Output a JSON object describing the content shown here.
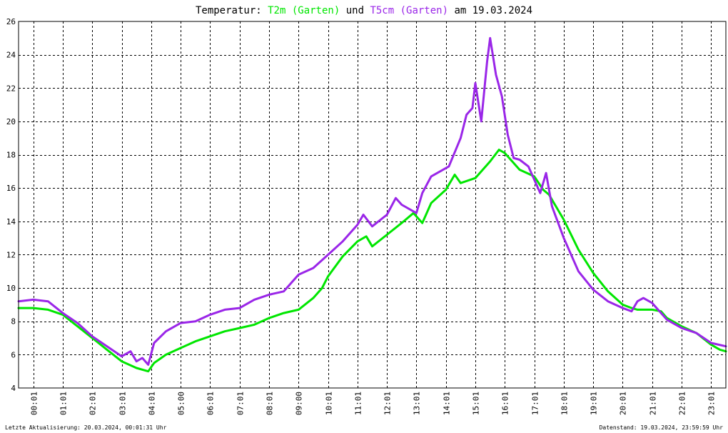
{
  "chart_data": {
    "type": "line",
    "title": {
      "prefix": "Temperatur: ",
      "series1": "T2m (Garten)",
      "connector": " und ",
      "series2": "T5cm (Garten)",
      "suffix": " am 19.03.2024"
    },
    "x_ticks": [
      "00:01",
      "01:01",
      "02:01",
      "03:01",
      "04:01",
      "05:00",
      "06:01",
      "07:01",
      "08:01",
      "09:00",
      "10:01",
      "11:01",
      "12:01",
      "13:01",
      "14:01",
      "15:01",
      "16:01",
      "17:01",
      "18:01",
      "19:01",
      "20:01",
      "21:01",
      "22:01",
      "23:01"
    ],
    "y_ticks": [
      "4",
      "6",
      "8",
      "10",
      "12",
      "14",
      "16",
      "18",
      "20",
      "22",
      "24",
      "26"
    ],
    "ylim": [
      4,
      26
    ],
    "xlim_hours": [
      0,
      24
    ],
    "grid": true,
    "series": [
      {
        "name": "T2m (Garten)",
        "color": "#00e600",
        "points": [
          [
            0,
            8.8
          ],
          [
            0.5,
            8.8
          ],
          [
            1.0,
            8.7
          ],
          [
            1.5,
            8.4
          ],
          [
            2.0,
            7.7
          ],
          [
            2.5,
            7.0
          ],
          [
            3.0,
            6.3
          ],
          [
            3.5,
            5.6
          ],
          [
            4.0,
            5.2
          ],
          [
            4.4,
            5.0
          ],
          [
            4.6,
            5.5
          ],
          [
            5.0,
            6.0
          ],
          [
            5.5,
            6.4
          ],
          [
            6.0,
            6.8
          ],
          [
            6.5,
            7.1
          ],
          [
            7.0,
            7.4
          ],
          [
            7.5,
            7.6
          ],
          [
            8.0,
            7.8
          ],
          [
            8.5,
            8.2
          ],
          [
            9.0,
            8.5
          ],
          [
            9.5,
            8.7
          ],
          [
            10.0,
            9.4
          ],
          [
            10.3,
            10.0
          ],
          [
            10.5,
            10.7
          ],
          [
            11.0,
            11.9
          ],
          [
            11.5,
            12.8
          ],
          [
            11.8,
            13.1
          ],
          [
            12.0,
            12.5
          ],
          [
            12.5,
            13.2
          ],
          [
            13.0,
            13.9
          ],
          [
            13.4,
            14.5
          ],
          [
            13.7,
            13.9
          ],
          [
            14.0,
            15.1
          ],
          [
            14.5,
            15.9
          ],
          [
            14.8,
            16.8
          ],
          [
            15.0,
            16.3
          ],
          [
            15.5,
            16.6
          ],
          [
            15.8,
            17.2
          ],
          [
            16.0,
            17.6
          ],
          [
            16.3,
            18.3
          ],
          [
            16.5,
            18.1
          ],
          [
            17.0,
            17.1
          ],
          [
            17.5,
            16.7
          ],
          [
            17.8,
            15.9
          ],
          [
            18.0,
            15.6
          ],
          [
            18.5,
            14.1
          ],
          [
            19.0,
            12.3
          ],
          [
            19.5,
            10.9
          ],
          [
            20.0,
            9.8
          ],
          [
            20.5,
            9.0
          ],
          [
            20.8,
            8.8
          ],
          [
            21.0,
            8.7
          ],
          [
            21.5,
            8.7
          ],
          [
            21.8,
            8.6
          ],
          [
            22.0,
            8.2
          ],
          [
            22.5,
            7.7
          ],
          [
            23.0,
            7.3
          ],
          [
            23.5,
            6.6
          ],
          [
            23.8,
            6.3
          ],
          [
            24.0,
            6.2
          ]
        ]
      },
      {
        "name": "T5cm (Garten)",
        "color": "#9a26e8",
        "points": [
          [
            0,
            9.2
          ],
          [
            0.5,
            9.3
          ],
          [
            1.0,
            9.2
          ],
          [
            1.5,
            8.5
          ],
          [
            2.0,
            7.9
          ],
          [
            2.5,
            7.1
          ],
          [
            3.0,
            6.5
          ],
          [
            3.5,
            5.9
          ],
          [
            3.8,
            6.2
          ],
          [
            4.0,
            5.6
          ],
          [
            4.2,
            5.8
          ],
          [
            4.4,
            5.4
          ],
          [
            4.6,
            6.7
          ],
          [
            5.0,
            7.4
          ],
          [
            5.5,
            7.9
          ],
          [
            6.0,
            8.0
          ],
          [
            6.5,
            8.4
          ],
          [
            7.0,
            8.7
          ],
          [
            7.5,
            8.8
          ],
          [
            8.0,
            9.3
          ],
          [
            8.5,
            9.6
          ],
          [
            9.0,
            9.8
          ],
          [
            9.5,
            10.8
          ],
          [
            10.0,
            11.2
          ],
          [
            10.5,
            12.0
          ],
          [
            11.0,
            12.8
          ],
          [
            11.5,
            13.8
          ],
          [
            11.7,
            14.4
          ],
          [
            12.0,
            13.7
          ],
          [
            12.5,
            14.4
          ],
          [
            12.8,
            15.4
          ],
          [
            13.0,
            15.0
          ],
          [
            13.5,
            14.5
          ],
          [
            13.7,
            15.7
          ],
          [
            14.0,
            16.7
          ],
          [
            14.3,
            17.0
          ],
          [
            14.6,
            17.3
          ],
          [
            15.0,
            19.0
          ],
          [
            15.2,
            20.4
          ],
          [
            15.4,
            20.8
          ],
          [
            15.5,
            22.3
          ],
          [
            15.7,
            20.0
          ],
          [
            15.9,
            23.6
          ],
          [
            16.0,
            25.0
          ],
          [
            16.2,
            22.8
          ],
          [
            16.4,
            21.5
          ],
          [
            16.6,
            19.2
          ],
          [
            16.8,
            17.8
          ],
          [
            17.0,
            17.7
          ],
          [
            17.3,
            17.3
          ],
          [
            17.5,
            16.5
          ],
          [
            17.7,
            15.7
          ],
          [
            17.9,
            16.9
          ],
          [
            18.1,
            14.9
          ],
          [
            18.5,
            13.0
          ],
          [
            19.0,
            11.0
          ],
          [
            19.5,
            9.9
          ],
          [
            20.0,
            9.2
          ],
          [
            20.5,
            8.8
          ],
          [
            20.8,
            8.6
          ],
          [
            21.0,
            9.2
          ],
          [
            21.2,
            9.4
          ],
          [
            21.5,
            9.1
          ],
          [
            21.8,
            8.5
          ],
          [
            22.0,
            8.1
          ],
          [
            22.5,
            7.6
          ],
          [
            23.0,
            7.3
          ],
          [
            23.5,
            6.7
          ],
          [
            24.0,
            6.5
          ]
        ]
      }
    ],
    "footer_left": "Letzte Aktualisierung: 20.03.2024, 00:01:31 Uhr",
    "footer_right": "Datenstand: 19.03.2024, 23:59:59 Uhr"
  }
}
